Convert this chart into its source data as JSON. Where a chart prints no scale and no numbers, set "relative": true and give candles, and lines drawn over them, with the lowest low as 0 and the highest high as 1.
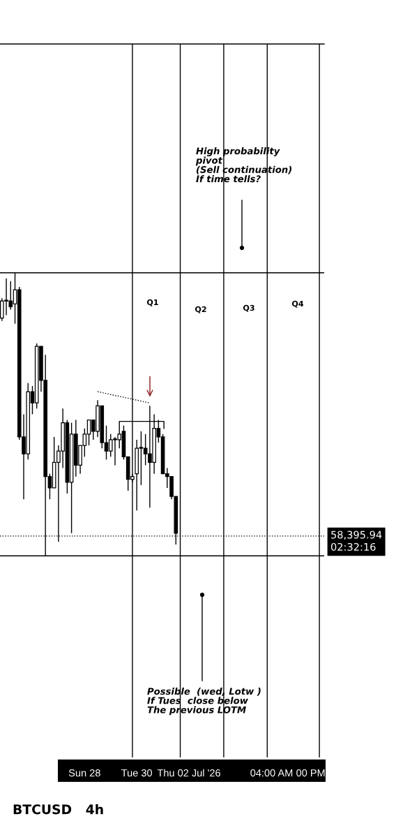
{
  "chart_data": {
    "type": "candlestick",
    "relative": true,
    "x": [
      "2026-06-24T20:00",
      "2026-06-25T00:00",
      "2026-06-25T04:00",
      "2026-06-25T08:00",
      "2026-06-25T12:00",
      "2026-06-25T16:00",
      "2026-06-25T20:00",
      "2026-06-26T00:00",
      "2026-06-26T04:00",
      "2026-06-26T08:00",
      "2026-06-26T12:00",
      "2026-06-26T16:00",
      "2026-06-26T20:00",
      "2026-06-27T00:00",
      "2026-06-27T04:00",
      "2026-06-27T08:00",
      "2026-06-27T12:00",
      "2026-06-27T16:00",
      "2026-06-27T20:00",
      "2026-06-28T00:00",
      "2026-06-28T04:00",
      "2026-06-28T08:00",
      "2026-06-28T12:00",
      "2026-06-28T16:00",
      "2026-06-28T20:00",
      "2026-06-29T00:00",
      "2026-06-29T04:00",
      "2026-06-29T08:00",
      "2026-06-29T12:00",
      "2026-06-29T16:00",
      "2026-06-29T20:00",
      "2026-06-30T00:00",
      "2026-06-30T04:00",
      "2026-06-30T08:00",
      "2026-06-30T12:00",
      "2026-06-30T16:00",
      "2026-06-30T20:00",
      "2026-07-01T00:00",
      "2026-07-01T04:00",
      "2026-07-01T08:00",
      "2026-07-01T12:00"
    ],
    "ohlc": [
      [
        0.84,
        0.91,
        0.83,
        0.9
      ],
      [
        0.9,
        0.98,
        0.85,
        0.9
      ],
      [
        0.9,
        0.97,
        0.87,
        0.88
      ],
      [
        0.89,
        1.0,
        0.82,
        0.94
      ],
      [
        0.94,
        0.95,
        0.41,
        0.42
      ],
      [
        0.42,
        0.5,
        0.2,
        0.36
      ],
      [
        0.36,
        0.61,
        0.34,
        0.58
      ],
      [
        0.58,
        0.6,
        0.5,
        0.54
      ],
      [
        0.54,
        0.75,
        0.52,
        0.74
      ],
      [
        0.74,
        0.74,
        0.58,
        0.62
      ],
      [
        0.62,
        0.71,
        0.0,
        0.28
      ],
      [
        0.28,
        0.29,
        0.2,
        0.24
      ],
      [
        0.24,
        0.42,
        0.24,
        0.33
      ],
      [
        0.33,
        0.39,
        0.05,
        0.37
      ],
      [
        0.37,
        0.52,
        0.31,
        0.47
      ],
      [
        0.47,
        0.48,
        0.22,
        0.26
      ],
      [
        0.26,
        0.47,
        0.08,
        0.43
      ],
      [
        0.43,
        0.48,
        0.28,
        0.32
      ],
      [
        0.32,
        0.39,
        0.29,
        0.39
      ],
      [
        0.39,
        0.45,
        0.35,
        0.43
      ],
      [
        0.43,
        0.48,
        0.39,
        0.48
      ],
      [
        0.48,
        0.48,
        0.41,
        0.44
      ],
      [
        0.44,
        0.55,
        0.42,
        0.53
      ],
      [
        0.53,
        0.53,
        0.38,
        0.4
      ],
      [
        0.4,
        0.46,
        0.34,
        0.37
      ],
      [
        0.37,
        0.43,
        0.35,
        0.41
      ],
      [
        0.41,
        0.42,
        0.32,
        0.41
      ],
      [
        0.41,
        0.43,
        0.38,
        0.43
      ],
      [
        0.44,
        0.46,
        0.34,
        0.35
      ],
      [
        0.35,
        0.35,
        0.23,
        0.27
      ],
      [
        0.27,
        0.29,
        0.26,
        0.28
      ],
      [
        0.29,
        0.41,
        0.16,
        0.38
      ],
      [
        0.38,
        0.44,
        0.25,
        0.38
      ],
      [
        0.38,
        0.43,
        0.32,
        0.36
      ],
      [
        0.36,
        0.53,
        0.17,
        0.33
      ],
      [
        0.33,
        0.5,
        0.29,
        0.45
      ],
      [
        0.45,
        0.48,
        0.4,
        0.42
      ],
      [
        0.42,
        0.43,
        0.29,
        0.29
      ],
      [
        0.29,
        0.31,
        0.24,
        0.28
      ],
      [
        0.28,
        0.28,
        0.2,
        0.21
      ],
      [
        0.21,
        0.21,
        0.04,
        0.08
      ]
    ],
    "series": [
      {
        "type": "line",
        "x": [
          "2026-06-28T12:00",
          "2026-06-30T12:00"
        ],
        "values": [
          0.58,
          0.54
        ],
        "color": "#000000",
        "line_style": "dotted"
      },
      {
        "type": "line",
        "x": [
          "2026-06-29T08:00",
          "2026-06-29T08:00",
          "2026-07-01T01:00",
          "2026-07-01T01:00"
        ],
        "values": [
          0.41,
          0.475,
          0.475,
          0.45
        ],
        "color": "#000000",
        "line_style": "solid"
      }
    ],
    "xlim": [
      "2026-06-24T18:12",
      "2026-07-07T04:24"
    ],
    "xticks": [
      {
        "value": "2026-06-28",
        "label": "Sun 28"
      },
      {
        "value": "2026-06-30",
        "label": "Tue 30"
      },
      {
        "value": "2026-07-02",
        "label": "Thu 02 Jul '26"
      },
      {
        "value": "2026-07-05T04:00",
        "label": "04:00 AM"
      },
      {
        "value": "2026-07-06T16:00",
        "label": "00 PM"
      }
    ],
    "tick_labels": "x",
    "ref_lines": [
      {
        "axis": "y",
        "value": 1.0,
        "color": "#000000",
        "line_style": "solid"
      },
      {
        "axis": "y",
        "value": 0.0,
        "color": "#000000",
        "line_style": "solid"
      },
      {
        "axis": "y",
        "value": 0.07,
        "color": "#000000",
        "line_style": "dotted"
      },
      {
        "axis": "x",
        "value": "2026-06-29T20:00",
        "color": "#000000",
        "line_style": "solid"
      },
      {
        "axis": "x",
        "value": "2026-07-01T16:00",
        "color": "#000000",
        "line_style": "solid"
      },
      {
        "axis": "x",
        "value": "2026-07-03T08:00",
        "color": "#000000",
        "line_style": "solid"
      },
      {
        "axis": "x",
        "value": "2026-07-05T00:00",
        "color": "#000000",
        "line_style": "solid"
      },
      {
        "axis": "x",
        "value": "2026-07-07T00:00",
        "color": "#000000",
        "line_style": "solid"
      }
    ],
    "annotations": [
      "High probability\npivot\n(Sell continuation)\nIf time tells?",
      "Possible  (wed, Lotw )\nIf Tues  close below\nThe previous LOTM",
      "58,395.94\n02:32:16",
      "BTCUSD   4h",
      "Q1",
      "Q2",
      "Q3",
      "Q4"
    ],
    "grid": false
  }
}
